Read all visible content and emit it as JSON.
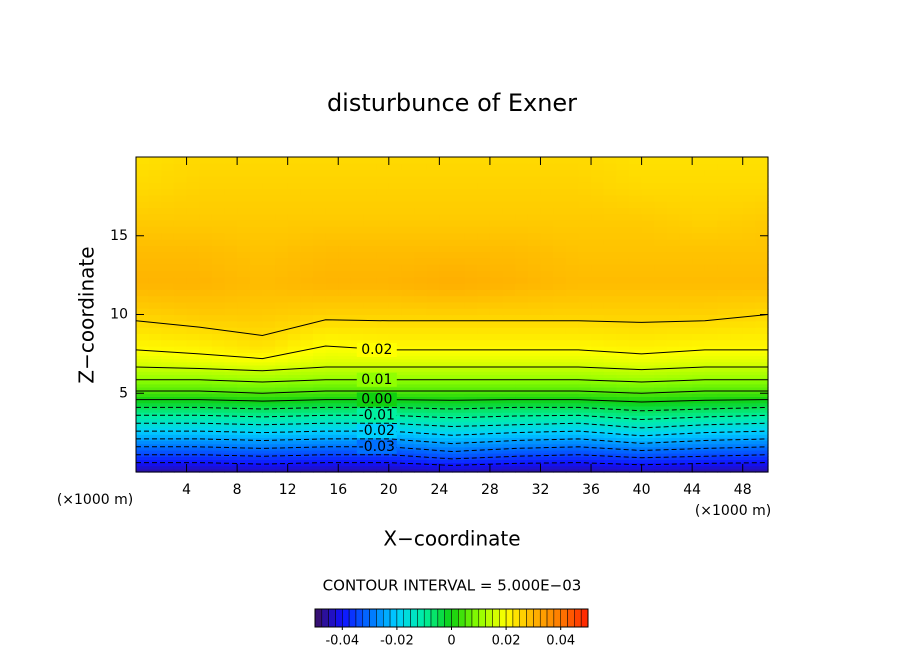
{
  "chart_data": {
    "type": "contour",
    "title": "disturbunce of Exner",
    "x_label": "X−coordinate",
    "y_label": "Z−coordinate",
    "x_unit_label": "(×1000 m)",
    "y_unit_label": "(×1000 m)",
    "contour_interval_label": "CONTOUR INTERVAL = 5.000E−03",
    "xlim": [
      0,
      50
    ],
    "ylim": [
      0,
      20
    ],
    "xticks": [
      4,
      8,
      12,
      16,
      20,
      24,
      28,
      32,
      36,
      40,
      44,
      48
    ],
    "yticks": [
      5,
      10,
      15
    ],
    "x": [
      0,
      5,
      10,
      15,
      20,
      25,
      30,
      35,
      40,
      45,
      50
    ],
    "z": [
      0,
      1,
      2,
      3,
      4,
      5,
      6,
      7,
      8,
      10,
      12,
      14,
      16,
      18,
      20
    ],
    "values": [
      [
        -0.046,
        -0.046,
        -0.045,
        -0.046,
        -0.046,
        -0.045,
        -0.046,
        -0.046,
        -0.045,
        -0.046,
        -0.046
      ],
      [
        -0.036,
        -0.036,
        -0.035,
        -0.036,
        -0.036,
        -0.033,
        -0.035,
        -0.036,
        -0.034,
        -0.035,
        -0.036
      ],
      [
        -0.026,
        -0.026,
        -0.025,
        -0.026,
        -0.026,
        -0.023,
        -0.025,
        -0.026,
        -0.023,
        -0.025,
        -0.026
      ],
      [
        -0.016,
        -0.016,
        -0.015,
        -0.016,
        -0.016,
        -0.014,
        -0.015,
        -0.016,
        -0.013,
        -0.015,
        -0.016
      ],
      [
        -0.006,
        -0.006,
        -0.005,
        -0.006,
        -0.006,
        -0.005,
        -0.006,
        -0.006,
        -0.004,
        -0.005,
        -0.006
      ],
      [
        0.004,
        0.004,
        0.005,
        0.004,
        0.004,
        0.004,
        0.004,
        0.004,
        0.005,
        0.004,
        0.004
      ],
      [
        0.011,
        0.011,
        0.012,
        0.011,
        0.011,
        0.011,
        0.011,
        0.011,
        0.012,
        0.011,
        0.011
      ],
      [
        0.017,
        0.018,
        0.019,
        0.017,
        0.017,
        0.017,
        0.017,
        0.017,
        0.018,
        0.017,
        0.017
      ],
      [
        0.021,
        0.022,
        0.024,
        0.02,
        0.021,
        0.021,
        0.021,
        0.021,
        0.022,
        0.021,
        0.021
      ],
      [
        0.026,
        0.027,
        0.027,
        0.026,
        0.026,
        0.026,
        0.026,
        0.026,
        0.026,
        0.026,
        0.025
      ],
      [
        0.03,
        0.03,
        0.029,
        0.03,
        0.03,
        0.031,
        0.03,
        0.029,
        0.029,
        0.029,
        0.029
      ],
      [
        0.029,
        0.029,
        0.028,
        0.029,
        0.029,
        0.029,
        0.029,
        0.028,
        0.028,
        0.028,
        0.028
      ],
      [
        0.027,
        0.027,
        0.027,
        0.027,
        0.027,
        0.027,
        0.027,
        0.027,
        0.027,
        0.026,
        0.027
      ],
      [
        0.025,
        0.026,
        0.026,
        0.026,
        0.026,
        0.026,
        0.026,
        0.026,
        0.025,
        0.025,
        0.025
      ],
      [
        0.024,
        0.025,
        0.025,
        0.025,
        0.025,
        0.025,
        0.025,
        0.025,
        0.024,
        0.024,
        0.024
      ]
    ],
    "contour_levels": [
      -0.04,
      -0.035,
      -0.03,
      -0.025,
      -0.02,
      -0.015,
      -0.01,
      -0.005,
      0,
      0.005,
      0.01,
      0.015,
      0.02,
      0.025
    ],
    "contour_labels": [
      {
        "value": 0.02,
        "label": "0.02"
      },
      {
        "value": 0.01,
        "label": "0.01"
      },
      {
        "value": 0,
        "label": "0.00"
      },
      {
        "value": -0.01,
        "label": "-0.01"
      },
      {
        "value": -0.02,
        "label": "-0.02"
      },
      {
        "value": -0.03,
        "label": "-0.03"
      }
    ],
    "colormap": [
      "#3c1060",
      "#1010ff",
      "#0070ff",
      "#00d0ff",
      "#00f0a0",
      "#10d010",
      "#90ff00",
      "#ffff00",
      "#ffb400",
      "#ff7a00",
      "#ff2000"
    ],
    "colorbar": {
      "lim": [
        -0.05,
        0.05
      ],
      "ticks": [
        -0.04,
        -0.02,
        0,
        0.02,
        0.04
      ]
    }
  }
}
